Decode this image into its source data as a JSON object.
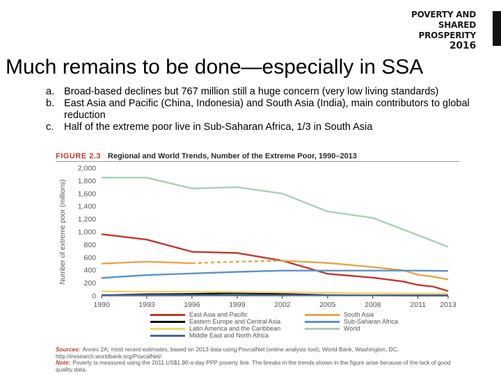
{
  "logo": {
    "line1": "POVERTY AND",
    "line2": "SHARED PROSPERITY",
    "line3": "2016"
  },
  "slide_title": "Much remains to be done—especially in SSA",
  "bullets": [
    {
      "marker": "a.",
      "text": "Broad-based declines but 767 million still a huge concern (very low living standards)"
    },
    {
      "marker": "b.",
      "text": "East Asia and Pacific (China, Indonesia) and South Asia (India), main contributors to global reduction"
    },
    {
      "marker": "c.",
      "text": "Half of the extreme poor live in Sub-Saharan Africa, 1/3 in South Asia"
    }
  ],
  "figure": {
    "number": "FIGURE 2.3",
    "title": "Regional and World Trends, Number of the Extreme Poor, 1990–2013"
  },
  "sources": {
    "sources_label": "Sources:",
    "sources_text": "Annex 2A; most recent estimates, based on 2013 data using PovcalNet (online analysis tool), World Bank, Washington, DC, http://iresearch.worldbank.org/PovcalNet/.",
    "note_label": "Note:",
    "note_text": "Poverty is measured using the 2011 US$1.90-a-day PPP poverty line. The breaks in the trends shown in the figure arise because of the lack of good quality data."
  },
  "chart_data": {
    "type": "line",
    "ylabel": "Number of extreme poor (millions)",
    "xlabel": "",
    "ylim": [
      0,
      2000
    ],
    "xlim": [
      1990,
      2013
    ],
    "y_ticks": [
      "0",
      "200",
      "400",
      "600",
      "800",
      "1,000",
      "1,200",
      "1,400",
      "1,600",
      "1,800",
      "2,000"
    ],
    "x_ticks": [
      "1990",
      "1993",
      "1996",
      "1999",
      "2002",
      "2005",
      "2008",
      "2011",
      "2013"
    ],
    "grid": "none",
    "legend_position": "bottom",
    "series": [
      {
        "name": "East Asia and Pacific",
        "color": "#c0392b",
        "x": [
          1990,
          1993,
          1996,
          1999,
          2002,
          2005,
          2008,
          2010,
          2011,
          2012,
          2013
        ],
        "y": [
          965,
          880,
          690,
          670,
          550,
          345,
          285,
          225,
          170,
          145,
          75
        ]
      },
      {
        "name": "South Asia",
        "color": "#e8a44a",
        "dashed_range": [
          1996,
          2002
        ],
        "x": [
          1990,
          1993,
          1996,
          1999,
          2002,
          2005,
          2008,
          2010,
          2011,
          2012,
          2013
        ],
        "y": [
          505,
          535,
          510,
          535,
          550,
          515,
          450,
          400,
          330,
          300,
          256
        ]
      },
      {
        "name": "Eastern Europe and Central Asia",
        "color": "#111111",
        "x": [
          1990,
          1993,
          1996,
          1999,
          2002,
          2005,
          2008,
          2011,
          2013
        ],
        "y": [
          10,
          25,
          30,
          40,
          28,
          12,
          8,
          5,
          5
        ]
      },
      {
        "name": "Sub-Saharan Africa",
        "color": "#5b93c7",
        "x": [
          1990,
          1993,
          1996,
          1999,
          2002,
          2005,
          2008,
          2011,
          2013
        ],
        "y": [
          280,
          325,
          350,
          375,
          395,
          395,
          395,
          395,
          389
        ]
      },
      {
        "name": "Latin America and the Caribbean",
        "color": "#f2d26a",
        "x": [
          1990,
          1993,
          1996,
          1999,
          2002,
          2005,
          2008,
          2011,
          2013
        ],
        "y": [
          70,
          65,
          65,
          60,
          55,
          50,
          40,
          35,
          34
        ]
      },
      {
        "name": "World",
        "color": "#a9cfb6",
        "x": [
          1990,
          1993,
          1996,
          1999,
          2002,
          2005,
          2008,
          2011,
          2013
        ],
        "y": [
          1850,
          1850,
          1680,
          1700,
          1600,
          1320,
          1220,
          950,
          767
        ]
      },
      {
        "name": "Middle East and North Africa",
        "color": "#4d6699",
        "x": [
          1990,
          1993,
          1996,
          1999,
          2002,
          2005,
          2008,
          2011,
          2013
        ],
        "y": [
          13,
          13,
          11,
          10,
          10,
          9,
          9,
          9,
          9
        ]
      }
    ]
  }
}
